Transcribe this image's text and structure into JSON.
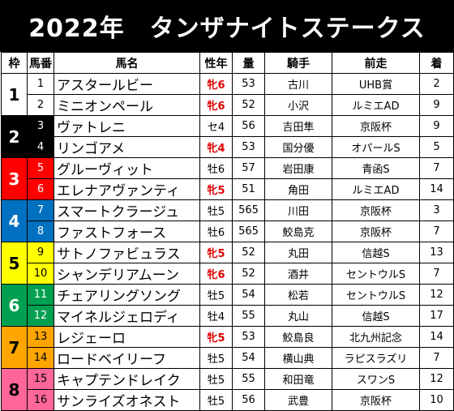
{
  "title": "2022年　タンザナイトステークス",
  "headers": {
    "waku": "枠",
    "umaban": "馬番",
    "name": "馬名",
    "sexage": "性年",
    "weight": "量",
    "jockey": "騎手",
    "prev": "前走",
    "finish": "着"
  },
  "colors": {
    "waku1": "#ffffff",
    "waku2": "#000000",
    "waku3": "#ff0000",
    "waku4": "#0070c0",
    "waku5": "#ffff00",
    "waku6": "#00a050",
    "waku7": "#ffa500",
    "waku8": "#ff6699",
    "mare_text": "#e00000"
  },
  "rows": [
    {
      "waku": "1",
      "umaban": "1",
      "name": "アスタールビー",
      "sexage": "牝6",
      "weight": "53",
      "jockey": "古川",
      "prev": "UHB賞",
      "finish": "2"
    },
    {
      "waku": "1",
      "umaban": "2",
      "name": "ミニオンペール",
      "sexage": "牝6",
      "weight": "52",
      "jockey": "小沢",
      "prev": "ルミエAD",
      "finish": "9"
    },
    {
      "waku": "2",
      "umaban": "3",
      "name": "ヴァトレニ",
      "sexage": "セ4",
      "weight": "56",
      "jockey": "吉田隼",
      "prev": "京阪杯",
      "finish": "9"
    },
    {
      "waku": "2",
      "umaban": "4",
      "name": "リンゴアメ",
      "sexage": "牝4",
      "weight": "53",
      "jockey": "国分優",
      "prev": "オパールS",
      "finish": "5"
    },
    {
      "waku": "3",
      "umaban": "5",
      "name": "グルーヴィット",
      "sexage": "牡6",
      "weight": "57",
      "jockey": "岩田康",
      "prev": "青函S",
      "finish": "7"
    },
    {
      "waku": "3",
      "umaban": "6",
      "name": "エレナアヴァンティ",
      "sexage": "牝5",
      "weight": "51",
      "jockey": "角田",
      "prev": "ルミエAD",
      "finish": "14"
    },
    {
      "waku": "4",
      "umaban": "7",
      "name": "スマートクラージュ",
      "sexage": "牡5",
      "weight": "565",
      "jockey": "川田",
      "prev": "京阪杯",
      "finish": "3"
    },
    {
      "waku": "4",
      "umaban": "8",
      "name": "ファストフォース",
      "sexage": "牡6",
      "weight": "565",
      "jockey": "鮫島克",
      "prev": "京阪杯",
      "finish": "7"
    },
    {
      "waku": "5",
      "umaban": "9",
      "name": "サトノファビュラス",
      "sexage": "牝5",
      "weight": "52",
      "jockey": "丸田",
      "prev": "信越S",
      "finish": "13"
    },
    {
      "waku": "5",
      "umaban": "10",
      "name": "シャンデリアムーン",
      "sexage": "牝6",
      "weight": "52",
      "jockey": "酒井",
      "prev": "セントウルS",
      "finish": "7"
    },
    {
      "waku": "6",
      "umaban": "11",
      "name": "チェアリングソング",
      "sexage": "牡5",
      "weight": "54",
      "jockey": "松若",
      "prev": "セントウルS",
      "finish": "12"
    },
    {
      "waku": "6",
      "umaban": "12",
      "name": "マイネルジェロディ",
      "sexage": "牡4",
      "weight": "55",
      "jockey": "丸山",
      "prev": "信越S",
      "finish": "17"
    },
    {
      "waku": "7",
      "umaban": "13",
      "name": "レジェーロ",
      "sexage": "牝5",
      "weight": "53",
      "jockey": "鮫島良",
      "prev": "北九州記念",
      "finish": "14"
    },
    {
      "waku": "7",
      "umaban": "14",
      "name": "ロードベイリーフ",
      "sexage": "牡5",
      "weight": "54",
      "jockey": "横山典",
      "prev": "ラピスラズリ",
      "finish": "7"
    },
    {
      "waku": "8",
      "umaban": "15",
      "name": "キャプテンドレイク",
      "sexage": "牡5",
      "weight": "55",
      "jockey": "和田竜",
      "prev": "スワンS",
      "finish": "12"
    },
    {
      "waku": "8",
      "umaban": "16",
      "name": "サンライズオネスト",
      "sexage": "牡5",
      "weight": "56",
      "jockey": "武豊",
      "prev": "京阪杯",
      "finish": "10"
    }
  ]
}
